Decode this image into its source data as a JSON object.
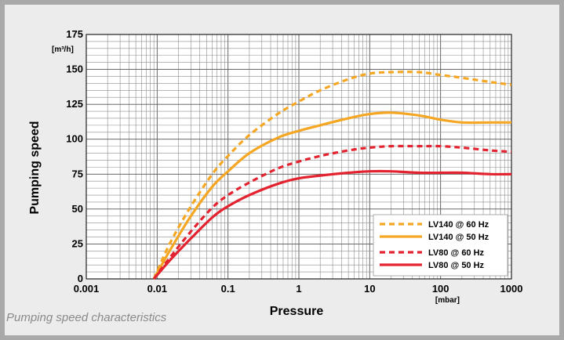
{
  "chart_data": {
    "type": "line",
    "xscale": "log",
    "xlim": [
      0.001,
      1000
    ],
    "ylim": [
      0,
      175
    ],
    "xticks": [
      0.001,
      0.01,
      0.1,
      1,
      10,
      100,
      1000
    ],
    "xtick_labels": [
      "0.001",
      "0.01",
      "0.1",
      "1",
      "10",
      "100",
      "1000"
    ],
    "yticks": [
      0,
      25,
      50,
      75,
      100,
      125,
      150,
      175
    ],
    "ytick_labels": [
      "0",
      "25",
      "50",
      "75",
      "100",
      "125",
      "150",
      "175"
    ],
    "xlabel": "Pressure",
    "ylabel": "Pumping speed",
    "x_unit": "[mbar]",
    "y_unit": "[m³/h]",
    "grid": true,
    "legend_position": "bottom-right",
    "series": [
      {
        "name": "LV140 @ 60 Hz",
        "color": "#f5a623",
        "dash": true,
        "x": [
          0.009,
          0.015,
          0.03,
          0.06,
          0.1,
          0.2,
          0.5,
          1,
          2,
          5,
          10,
          20,
          50,
          100,
          200,
          500,
          1000
        ],
        "y": [
          0,
          25,
          52,
          75,
          88,
          103,
          118,
          127,
          135,
          143,
          147,
          148,
          148,
          146,
          144,
          141,
          139
        ]
      },
      {
        "name": "LV140 @ 50 Hz",
        "color": "#f5a623",
        "dash": false,
        "x": [
          0.009,
          0.015,
          0.03,
          0.06,
          0.1,
          0.2,
          0.5,
          1,
          2,
          5,
          10,
          20,
          50,
          100,
          200,
          500,
          1000
        ],
        "y": [
          0,
          20,
          45,
          66,
          77,
          90,
          101,
          106,
          110,
          115,
          118,
          119,
          117,
          114,
          112,
          112,
          112
        ]
      },
      {
        "name": "LV80 @ 60 Hz",
        "color": "#e3232f",
        "dash": true,
        "x": [
          0.009,
          0.015,
          0.03,
          0.06,
          0.1,
          0.2,
          0.5,
          1,
          2,
          5,
          10,
          20,
          50,
          100,
          200,
          500,
          1000
        ],
        "y": [
          0,
          15,
          34,
          51,
          60,
          69,
          79,
          84,
          88,
          92,
          94,
          95,
          95,
          95,
          94,
          92,
          91
        ]
      },
      {
        "name": "LV80 @ 50 Hz",
        "color": "#e3232f",
        "dash": false,
        "x": [
          0.009,
          0.015,
          0.03,
          0.06,
          0.1,
          0.2,
          0.5,
          1,
          2,
          5,
          10,
          20,
          50,
          100,
          200,
          500,
          1000
        ],
        "y": [
          0,
          13,
          29,
          44,
          52,
          60,
          68,
          72,
          74,
          76,
          77,
          77,
          76,
          76,
          76,
          75,
          75
        ]
      }
    ]
  },
  "caption": "Pumping speed characteristics"
}
